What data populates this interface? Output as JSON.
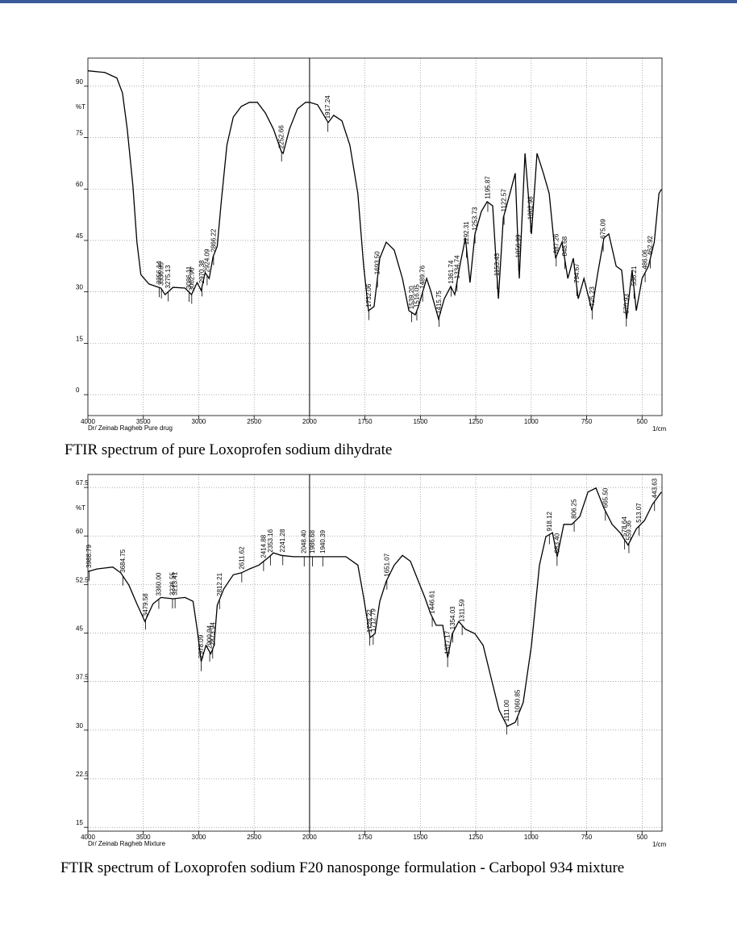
{
  "chart_data": [
    {
      "type": "line",
      "caption": "FTIR spectrum of pure Loxoprofen sodium dihydrate",
      "ylabel": "%T",
      "xlabel": "1/cm",
      "footer": "Dr/ Zeinab Ragheb  Pure drug",
      "xlim": [
        4000,
        410
      ],
      "xticks": [
        4000,
        3500,
        3000,
        2500,
        2000,
        1750,
        1500,
        1250,
        1000,
        750,
        500
      ],
      "x_scale_break": 2000,
      "x_scale_ratio": 2,
      "cursor_x": 2000,
      "ylim": [
        -6.1,
        98.2
      ],
      "yticks": [
        0,
        15,
        30,
        45,
        60,
        75,
        90
      ],
      "grid": true,
      "color": "#000000",
      "x": [
        4000,
        3848,
        3739,
        3688,
        3645,
        3594,
        3558,
        3522,
        3449,
        3341,
        3304,
        3232,
        3123,
        3065,
        3014,
        2978,
        2942,
        2906,
        2870,
        2833,
        2797,
        2746,
        2688,
        2616,
        2543,
        2471,
        2399,
        2326,
        2254,
        2239,
        2181,
        2109,
        2036,
        2000,
        1964,
        1916,
        1891,
        1854,
        1818,
        1782,
        1756,
        1734,
        1709,
        1683,
        1654,
        1618,
        1581,
        1552,
        1523,
        1509,
        1472,
        1454,
        1418,
        1392,
        1363,
        1345,
        1319,
        1297,
        1276,
        1254,
        1225,
        1199,
        1174,
        1148,
        1126,
        1101,
        1072,
        1054,
        1028,
        999,
        974,
        945,
        919,
        890,
        861,
        835,
        810,
        788,
        762,
        726,
        701,
        672,
        650,
        617,
        592,
        570,
        545,
        526,
        500,
        471,
        445,
        424,
        413
      ],
      "values": [
        94.5,
        94,
        92.4,
        88,
        77.5,
        61,
        44.5,
        35,
        32.3,
        31.1,
        29.2,
        31.3,
        31.1,
        29.2,
        32.7,
        30.4,
        35.6,
        33.9,
        40.3,
        43.3,
        56.3,
        72.8,
        81,
        84.1,
        85.3,
        85.3,
        82.2,
        77.5,
        70.9,
        70.4,
        77.5,
        83.4,
        85.3,
        85.3,
        84.6,
        79.4,
        81.5,
        79.9,
        72.8,
        58.7,
        37.5,
        24.5,
        25.7,
        39.8,
        44.5,
        42.2,
        33.9,
        24.5,
        23.3,
        25.7,
        33.9,
        30.4,
        22.1,
        28,
        31.6,
        29.2,
        38.6,
        45.7,
        32.7,
        46.9,
        53.5,
        56.3,
        55.1,
        28,
        51.6,
        57.5,
        64.6,
        33.9,
        70.4,
        46.9,
        70.4,
        64.6,
        58.7,
        39.8,
        44.5,
        33.9,
        39.8,
        28,
        33.9,
        24.5,
        35,
        45.7,
        46.9,
        37.5,
        36.3,
        22.1,
        36.3,
        24.5,
        33.9,
        37.5,
        44.5,
        58.7,
        59.9
      ],
      "peaks": [
        3356.14,
        3336.85,
        3275.13,
        3086.11,
        3062.96,
        2970.38,
        2924.09,
        2866.22,
        2252.66,
        1917.24,
        1732.06,
        {
          "value": 1693.5,
          "label": "1693.50"
        },
        {
          "value": 1539.2,
          "label": "1539.20"
        },
        1516.05,
        1489.76,
        1415.75,
        1361.74,
        1334.74,
        1292.31,
        1253.73,
        1195.87,
        1153.43,
        1122.57,
        1056.99,
        1002.98,
        887.26,
        848.68,
        794.67,
        725.23,
        675.09,
        570.93,
        536.21,
        486.06,
        462.92
      ]
    },
    {
      "type": "line",
      "caption": "FTIR spectrum of Loxoprofen sodium F20 nanosponge  formulation - Carbopol 934 mixture",
      "ylabel": "%T",
      "xlabel": "1/cm",
      "footer": "Dr/ Zeinab Ragheb  Mixture",
      "xlim": [
        4000,
        410
      ],
      "xticks": [
        4000,
        3500,
        3000,
        2500,
        2000,
        1750,
        1500,
        1250,
        1000,
        750,
        500
      ],
      "x_scale_break": 2000,
      "x_scale_ratio": 2,
      "cursor_x": 2000,
      "ylim": [
        14.4,
        69.5
      ],
      "yticks": [
        15,
        22.5,
        30,
        37.5,
        45,
        52.5,
        60,
        67.5
      ],
      "grid": true,
      "color": "#000000",
      "x": [
        4000,
        3920,
        3775,
        3703,
        3630,
        3558,
        3486,
        3413,
        3341,
        3232,
        3123,
        3051,
        3014,
        2978,
        2935,
        2891,
        2862,
        2833,
        2775,
        2688,
        2616,
        2543,
        2457,
        2362,
        2326,
        2254,
        2145,
        2000,
        1945,
        1836,
        1782,
        1756,
        1727,
        1705,
        1683,
        1654,
        1618,
        1581,
        1545,
        1509,
        1480,
        1454,
        1429,
        1399,
        1377,
        1356,
        1327,
        1297,
        1254,
        1217,
        1181,
        1145,
        1108,
        1072,
        1036,
        999,
        963,
        934,
        904,
        883,
        853,
        817,
        781,
        744,
        708,
        672,
        635,
        599,
        563,
        526,
        489,
        453,
        413
      ],
      "values": [
        54.5,
        54.9,
        55.2,
        54.3,
        52.4,
        49.5,
        46.8,
        49.5,
        50.5,
        50.3,
        50.5,
        49.9,
        45.6,
        40.6,
        43.1,
        41.8,
        43.1,
        49.3,
        51.8,
        54,
        54.3,
        54.9,
        55.5,
        56.8,
        57.4,
        57,
        56.8,
        56.8,
        56.8,
        56.8,
        55.5,
        50.5,
        44.3,
        44.9,
        49.9,
        53,
        55.5,
        57,
        56.1,
        53,
        50.5,
        48,
        46.2,
        46.2,
        41.2,
        44.9,
        46.8,
        45.6,
        44.9,
        43.1,
        38.1,
        33.1,
        30.6,
        31.2,
        34.3,
        43.1,
        55.5,
        59.9,
        60.5,
        56.8,
        61.8,
        61.8,
        63,
        66.8,
        67.4,
        64.3,
        61.8,
        60.5,
        58.6,
        61.1,
        62.4,
        64.9,
        66.8
      ],
      "peaks": [
        3988.79,
        3684.75,
        3479.58,
        {
          "value": 3360,
          "label": "3360.00"
        },
        3236.55,
        3213.41,
        2978.09,
        2900.94,
        2873.94,
        2812.21,
        2611.62,
        2414.88,
        2353.16,
        2241.28,
        {
          "value": 2048.4,
          "label": "2048.40"
        },
        1986.68,
        1940.39,
        1728.22,
        1712.79,
        1651.07,
        1446.61,
        1377.17,
        1354.03,
        1311.59,
        {
          "value": 1111,
          "label": "1111.00"
        },
        1060.85,
        918.12,
        {
          "value": 883.4,
          "label": "883.40"
        },
        806.25,
        {
          "value": 665.5,
          "label": "665.50"
        },
        578.64,
        559.36,
        513.07,
        443.63
      ]
    }
  ]
}
